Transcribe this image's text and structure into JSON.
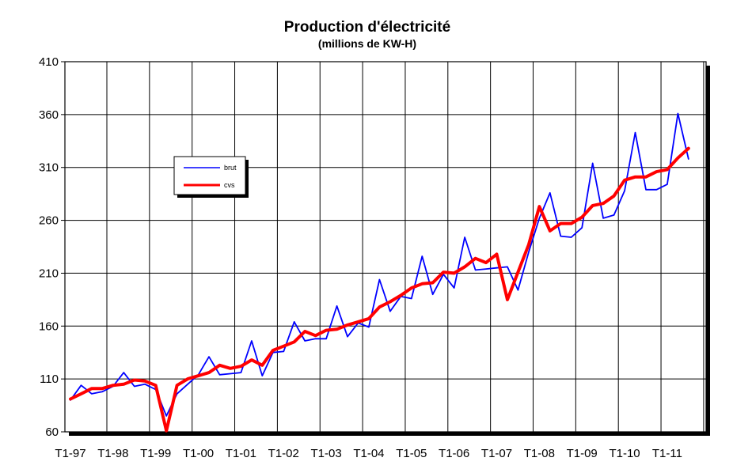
{
  "chart_data": {
    "type": "line",
    "title": "Production d'électricité",
    "subtitle": "(millions de KW-H)",
    "xlabel": "",
    "ylabel": "",
    "ylim": [
      60,
      410
    ],
    "yticks": [
      60,
      110,
      160,
      210,
      260,
      310,
      360,
      410
    ],
    "xtick_labels": [
      "T1-97",
      "T1-98",
      "T1-99",
      "T1-00",
      "T1-01",
      "T1-02",
      "T1-03",
      "T1-04",
      "T1-05",
      "T1-06",
      "T1-07",
      "T1-08",
      "T1-09",
      "T1-10",
      "T1-11"
    ],
    "grid": true,
    "legend": {
      "placement": "upper-left-inside"
    },
    "series": [
      {
        "name": "brut",
        "color": "#0000ff",
        "values": [
          90,
          104,
          96,
          98,
          103,
          116,
          103,
          105,
          100,
          75,
          96,
          105,
          114,
          131,
          114,
          115,
          116,
          146,
          113,
          135,
          136,
          164,
          146,
          148,
          148,
          179,
          150,
          163,
          159,
          204,
          174,
          188,
          186,
          226,
          190,
          209,
          196,
          244,
          213,
          214,
          215,
          216,
          194,
          230,
          262,
          286,
          245,
          244,
          253,
          314,
          262,
          265,
          288,
          343,
          289,
          289,
          294,
          361,
          318
        ]
      },
      {
        "name": "cvs",
        "color": "#ff0000",
        "values": [
          91,
          96,
          101,
          101,
          104,
          105,
          109,
          108,
          104,
          61,
          104,
          110,
          113,
          116,
          123,
          120,
          122,
          128,
          123,
          137,
          141,
          145,
          155,
          151,
          156,
          157,
          161,
          164,
          167,
          178,
          183,
          189,
          196,
          200,
          201,
          211,
          210,
          216,
          224,
          220,
          228,
          185,
          211,
          237,
          273,
          250,
          257,
          257,
          263,
          274,
          276,
          283,
          298,
          301,
          301,
          306,
          308,
          319,
          328
        ]
      }
    ]
  }
}
